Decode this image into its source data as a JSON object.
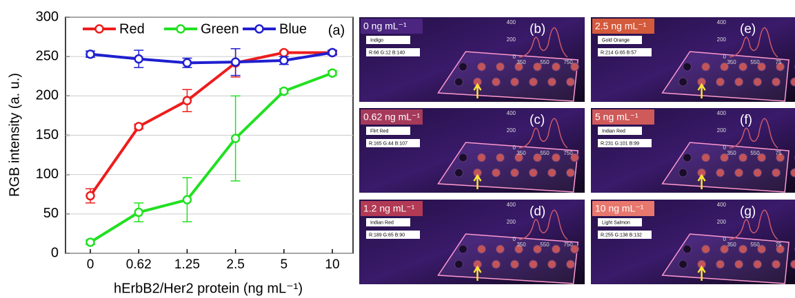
{
  "chart_data": {
    "type": "line",
    "panel_label": "(a)",
    "x_label": "hErbB2/Her2 protein (ng mL⁻¹)",
    "y_label": "RGB intensity (a. u.)",
    "categories": [
      "0",
      "0.62",
      "1.25",
      "2.5",
      "5",
      "10"
    ],
    "series": [
      {
        "name": "Red",
        "color": "#ee1c1c",
        "values": [
          73,
          161,
          194,
          242,
          255,
          255
        ],
        "errors": [
          9,
          3,
          14,
          18,
          2,
          2
        ]
      },
      {
        "name": "Green",
        "color": "#22e022",
        "values": [
          14,
          52,
          68,
          146,
          206,
          229
        ],
        "errors": [
          3,
          12,
          28,
          54,
          3,
          3
        ]
      },
      {
        "name": "Blue",
        "color": "#1f1fd0",
        "values": [
          253,
          247,
          242,
          243,
          245,
          255
        ],
        "errors": [
          4,
          11,
          6,
          17,
          5,
          3
        ]
      }
    ],
    "ylim": [
      0,
      300
    ],
    "yticks": [
      0,
      50,
      100,
      150,
      200,
      250,
      300
    ],
    "grid": true
  },
  "panels": [
    {
      "tag": "(b)",
      "concentration": "0 ng mL⁻¹",
      "color_name": "Indigo",
      "rgb": "R:66 G:12 B:140",
      "inset_y": [
        "400",
        "200",
        "0"
      ],
      "inset_x": [
        "350",
        "550",
        "750"
      ]
    },
    {
      "tag": "(c)",
      "concentration": "0.62 ng mL⁻¹",
      "color_name": "Flirt Red",
      "rgb": "R:165 G:44 B:107",
      "inset_y": [
        "400",
        "200",
        "0"
      ],
      "inset_x": [
        "350",
        "550",
        "750"
      ]
    },
    {
      "tag": "(d)",
      "concentration": "1.2 ng mL⁻¹",
      "color_name": "Indian Red",
      "rgb": "R:189 G:65 B:90",
      "inset_y": [
        "400",
        "200",
        "0"
      ],
      "inset_x": [
        "350",
        "550",
        "750"
      ]
    },
    {
      "tag": "(e)",
      "concentration": "2.5 ng mL⁻¹",
      "color_name": "Gold Orange",
      "rgb": "R:214 G:65 B:57",
      "inset_y": [
        "400",
        "200",
        "0"
      ],
      "inset_x": [
        "350",
        "550",
        "75"
      ]
    },
    {
      "tag": "(f)",
      "concentration": "5 ng mL⁻¹",
      "color_name": "Indian Red",
      "rgb": "R:231 G:101 B:99",
      "inset_y": [
        "400",
        "200",
        "0"
      ],
      "inset_x": [
        "350",
        "550",
        "75"
      ]
    },
    {
      "tag": "(g)",
      "concentration": "10 ng mL⁻¹",
      "color_name": "Light Salmon",
      "rgb": "R:255 G:138 B:132",
      "inset_y": [
        "400",
        "200",
        "0"
      ],
      "inset_x": [
        "350",
        "550",
        "75"
      ]
    }
  ]
}
